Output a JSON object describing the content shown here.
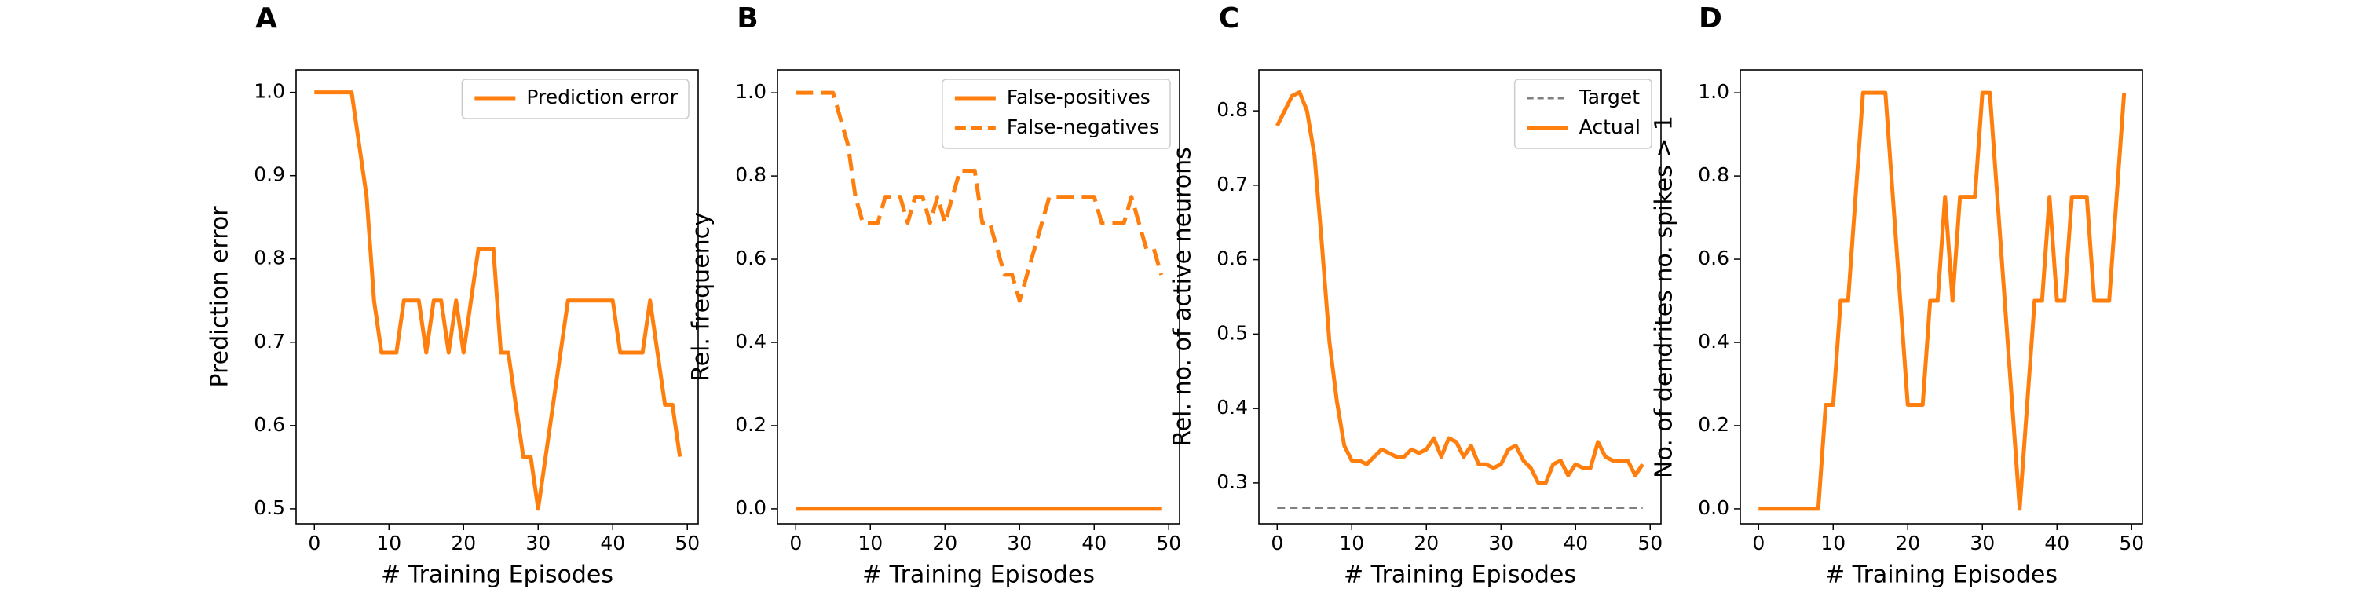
{
  "chart_data": [
    {
      "panel_label": "A",
      "type": "line",
      "xlabel": "# Training Episodes",
      "ylabel": "Prediction error",
      "legend": "upper right",
      "x": [
        0,
        1,
        2,
        3,
        4,
        5,
        6,
        7,
        8,
        9,
        10,
        11,
        12,
        13,
        14,
        15,
        16,
        17,
        18,
        19,
        20,
        21,
        22,
        23,
        24,
        25,
        26,
        27,
        28,
        29,
        30,
        31,
        32,
        33,
        34,
        35,
        36,
        37,
        38,
        39,
        40,
        41,
        42,
        43,
        44,
        45,
        46,
        47,
        48,
        49
      ],
      "series": [
        {
          "name": "Prediction error",
          "color": "#ff7f0e",
          "linestyle": "-",
          "linewidth": 2.5,
          "values": [
            1,
            1,
            1,
            1,
            1,
            1,
            0.9375,
            0.875,
            0.75,
            0.6875,
            0.6875,
            0.6875,
            0.75,
            0.75,
            0.75,
            0.6875,
            0.75,
            0.75,
            0.6875,
            0.75,
            0.6875,
            0.75,
            0.8125,
            0.8125,
            0.8125,
            0.6875,
            0.6875,
            0.625,
            0.5625,
            0.5625,
            0.5,
            0.5625,
            0.625,
            0.6875,
            0.75,
            0.75,
            0.75,
            0.75,
            0.75,
            0.75,
            0.75,
            0.6875,
            0.6875,
            0.6875,
            0.6875,
            0.75,
            0.6875,
            0.625,
            0.625,
            0.5625
          ]
        }
      ],
      "xlim": [
        -2.45,
        51.45
      ],
      "ylim": [
        0.482,
        1.027
      ],
      "xticks": [
        0,
        10,
        20,
        30,
        40,
        50
      ],
      "yticks": [
        0.5,
        0.6,
        0.7,
        0.8,
        0.9,
        {
          "value": 1,
          "label": "1.0"
        }
      ]
    },
    {
      "panel_label": "B",
      "type": "line",
      "xlabel": "# Training Episodes",
      "ylabel": "Rel. frequency",
      "legend": "upper right",
      "x": [
        0,
        1,
        2,
        3,
        4,
        5,
        6,
        7,
        8,
        9,
        10,
        11,
        12,
        13,
        14,
        15,
        16,
        17,
        18,
        19,
        20,
        21,
        22,
        23,
        24,
        25,
        26,
        27,
        28,
        29,
        30,
        31,
        32,
        33,
        34,
        35,
        36,
        37,
        38,
        39,
        40,
        41,
        42,
        43,
        44,
        45,
        46,
        47,
        48,
        49
      ],
      "series": [
        {
          "name": "False-positives",
          "color": "#ff7f0e",
          "linestyle": "-",
          "linewidth": 2.5,
          "values": [
            0,
            0,
            0,
            0,
            0,
            0,
            0,
            0,
            0,
            0,
            0,
            0,
            0,
            0,
            0,
            0,
            0,
            0,
            0,
            0,
            0,
            0,
            0,
            0,
            0,
            0,
            0,
            0,
            0,
            0,
            0,
            0,
            0,
            0,
            0,
            0,
            0,
            0,
            0,
            0,
            0,
            0,
            0,
            0,
            0,
            0,
            0,
            0,
            0,
            0
          ]
        },
        {
          "name": "False-negatives",
          "color": "#ff7f0e",
          "linestyle": "--",
          "linewidth": 2.5,
          "values": [
            1,
            1,
            1,
            1,
            1,
            1,
            0.9375,
            0.875,
            0.75,
            0.6875,
            0.6875,
            0.6875,
            0.75,
            0.75,
            0.75,
            0.6875,
            0.75,
            0.75,
            0.6875,
            0.75,
            0.6875,
            0.75,
            0.8125,
            0.8125,
            0.8125,
            0.6875,
            0.6875,
            0.625,
            0.5625,
            0.5625,
            0.5,
            0.5625,
            0.625,
            0.6875,
            0.75,
            0.75,
            0.75,
            0.75,
            0.75,
            0.75,
            0.75,
            0.6875,
            0.6875,
            0.6875,
            0.6875,
            0.75,
            0.6875,
            0.625,
            0.625,
            0.5625
          ]
        }
      ],
      "xlim": [
        -2.45,
        51.45
      ],
      "ylim": [
        -0.036,
        1.055
      ],
      "xticks": [
        0,
        10,
        20,
        30,
        40,
        50
      ],
      "yticks": [
        {
          "value": 0,
          "label": "0.0"
        },
        0.2,
        0.4,
        0.6,
        0.8,
        {
          "value": 1,
          "label": "1.0"
        }
      ]
    },
    {
      "panel_label": "C",
      "type": "line",
      "xlabel": "# Training Episodes",
      "ylabel": "Rel. no. of active neurons",
      "legend": "upper right",
      "x": [
        0,
        1,
        2,
        3,
        4,
        5,
        6,
        7,
        8,
        9,
        10,
        11,
        12,
        13,
        14,
        15,
        16,
        17,
        18,
        19,
        20,
        21,
        22,
        23,
        24,
        25,
        26,
        27,
        28,
        29,
        30,
        31,
        32,
        33,
        34,
        35,
        36,
        37,
        38,
        39,
        40,
        41,
        42,
        43,
        44,
        45,
        46,
        47,
        48,
        49
      ],
      "series": [
        {
          "name": "Target",
          "color": "#808080",
          "linestyle": "--",
          "linewidth": 1.5,
          "values": [
            0.2667,
            0.2667,
            0.2667,
            0.2667,
            0.2667,
            0.2667,
            0.2667,
            0.2667,
            0.2667,
            0.2667,
            0.2667,
            0.2667,
            0.2667,
            0.2667,
            0.2667,
            0.2667,
            0.2667,
            0.2667,
            0.2667,
            0.2667,
            0.2667,
            0.2667,
            0.2667,
            0.2667,
            0.2667,
            0.2667,
            0.2667,
            0.2667,
            0.2667,
            0.2667,
            0.2667,
            0.2667,
            0.2667,
            0.2667,
            0.2667,
            0.2667,
            0.2667,
            0.2667,
            0.2667,
            0.2667,
            0.2667,
            0.2667,
            0.2667,
            0.2667,
            0.2667,
            0.2667,
            0.2667,
            0.2667,
            0.2667,
            0.2667
          ]
        },
        {
          "name": "Actual",
          "color": "#ff7f0e",
          "linestyle": "-",
          "linewidth": 2.5,
          "values": [
            0.78,
            0.8,
            0.82,
            0.825,
            0.8,
            0.74,
            0.62,
            0.49,
            0.41,
            0.35,
            0.33,
            0.33,
            0.325,
            0.335,
            0.345,
            0.34,
            0.335,
            0.335,
            0.345,
            0.34,
            0.345,
            0.36,
            0.335,
            0.36,
            0.355,
            0.335,
            0.35,
            0.325,
            0.325,
            0.32,
            0.325,
            0.345,
            0.35,
            0.33,
            0.32,
            0.3,
            0.3,
            0.325,
            0.33,
            0.31,
            0.325,
            0.32,
            0.32,
            0.355,
            0.335,
            0.33,
            0.33,
            0.33,
            0.31,
            0.325
          ]
        }
      ],
      "xlim": [
        -2.45,
        51.45
      ],
      "ylim": [
        0.245,
        0.855
      ],
      "xticks": [
        0,
        10,
        20,
        30,
        40,
        50
      ],
      "yticks": [
        0.3,
        0.4,
        0.5,
        0.6,
        0.7,
        0.8
      ]
    },
    {
      "panel_label": "D",
      "type": "line",
      "xlabel": "# Training Episodes",
      "ylabel": "No. of dendrites no. spikes > 1",
      "legend": "none",
      "x": [
        0,
        1,
        2,
        3,
        4,
        5,
        6,
        7,
        8,
        9,
        10,
        11,
        12,
        13,
        14,
        15,
        16,
        17,
        18,
        19,
        20,
        21,
        22,
        23,
        24,
        25,
        26,
        27,
        28,
        29,
        30,
        31,
        32,
        33,
        34,
        35,
        36,
        37,
        38,
        39,
        40,
        41,
        42,
        43,
        44,
        45,
        46,
        47,
        48,
        49
      ],
      "series": [
        {
          "color": "#ff7f0e",
          "linestyle": "-",
          "linewidth": 2.5,
          "values": [
            0,
            0,
            0,
            0,
            0,
            0,
            0,
            0,
            0,
            0.25,
            0.25,
            0.5,
            0.5,
            0.75,
            1,
            1,
            1,
            1,
            0.75,
            0.5,
            0.25,
            0.25,
            0.25,
            0.5,
            0.5,
            0.75,
            0.5,
            0.75,
            0.75,
            0.75,
            1,
            1,
            0.75,
            0.5,
            0.25,
            0,
            0.25,
            0.5,
            0.5,
            0.75,
            0.5,
            0.5,
            0.75,
            0.75,
            0.75,
            0.5,
            0.5,
            0.5,
            0.75,
            1
          ]
        }
      ],
      "xlim": [
        -2.45,
        51.45
      ],
      "ylim": [
        -0.036,
        1.055
      ],
      "xticks": [
        0,
        10,
        20,
        30,
        40,
        50
      ],
      "yticks": [
        {
          "value": 0,
          "label": "0.0"
        },
        0.2,
        0.4,
        0.6,
        0.8,
        {
          "value": 1,
          "label": "1.0"
        }
      ]
    }
  ]
}
